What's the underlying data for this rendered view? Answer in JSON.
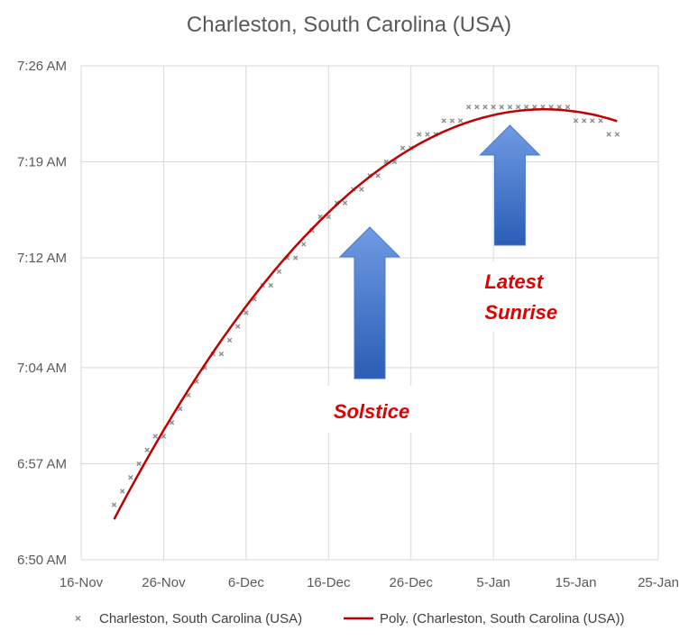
{
  "chart_data": {
    "type": "scatter",
    "title": "Charleston, South Carolina (USA)",
    "xlabel": "",
    "ylabel": "",
    "x_ticks": [
      "16-Nov",
      "26-Nov",
      "6-Dec",
      "16-Dec",
      "26-Dec",
      "5-Jan",
      "15-Jan",
      "25-Jan"
    ],
    "y_ticks": [
      "6:50 AM",
      "6:57 AM",
      "7:04 AM",
      "7:12 AM",
      "7:19 AM",
      "7:26 AM"
    ],
    "xlim": [
      "16-Nov",
      "25-Jan"
    ],
    "ylim": [
      "6:50 AM",
      "7:26 AM"
    ],
    "grid": "vertical and horizontal",
    "legend_position": "bottom",
    "series": [
      {
        "name": "Charleston, South Carolina (USA)",
        "marker": "x",
        "color": "#8c8c8c",
        "points": [
          [
            "20-Nov",
            "6:54 AM"
          ],
          [
            "21-Nov",
            "6:55 AM"
          ],
          [
            "22-Nov",
            "6:56 AM"
          ],
          [
            "23-Nov",
            "6:57 AM"
          ],
          [
            "24-Nov",
            "6:58 AM"
          ],
          [
            "25-Nov",
            "6:59 AM"
          ],
          [
            "26-Nov",
            "6:59 AM"
          ],
          [
            "27-Nov",
            "7:00 AM"
          ],
          [
            "28-Nov",
            "7:01 AM"
          ],
          [
            "29-Nov",
            "7:02 AM"
          ],
          [
            "30-Nov",
            "7:03 AM"
          ],
          [
            "1-Dec",
            "7:04 AM"
          ],
          [
            "2-Dec",
            "7:05 AM"
          ],
          [
            "3-Dec",
            "7:05 AM"
          ],
          [
            "4-Dec",
            "7:06 AM"
          ],
          [
            "5-Dec",
            "7:07 AM"
          ],
          [
            "6-Dec",
            "7:08 AM"
          ],
          [
            "7-Dec",
            "7:09 AM"
          ],
          [
            "8-Dec",
            "7:10 AM"
          ],
          [
            "9-Dec",
            "7:10 AM"
          ],
          [
            "10-Dec",
            "7:11 AM"
          ],
          [
            "11-Dec",
            "7:12 AM"
          ],
          [
            "12-Dec",
            "7:12 AM"
          ],
          [
            "13-Dec",
            "7:13 AM"
          ],
          [
            "14-Dec",
            "7:14 AM"
          ],
          [
            "15-Dec",
            "7:15 AM"
          ],
          [
            "16-Dec",
            "7:15 AM"
          ],
          [
            "17-Dec",
            "7:16 AM"
          ],
          [
            "18-Dec",
            "7:16 AM"
          ],
          [
            "19-Dec",
            "7:17 AM"
          ],
          [
            "20-Dec",
            "7:17 AM"
          ],
          [
            "21-Dec",
            "7:18 AM"
          ],
          [
            "22-Dec",
            "7:18 AM"
          ],
          [
            "23-Dec",
            "7:19 AM"
          ],
          [
            "24-Dec",
            "7:19 AM"
          ],
          [
            "25-Dec",
            "7:20 AM"
          ],
          [
            "26-Dec",
            "7:20 AM"
          ],
          [
            "27-Dec",
            "7:21 AM"
          ],
          [
            "28-Dec",
            "7:21 AM"
          ],
          [
            "29-Dec",
            "7:21 AM"
          ],
          [
            "30-Dec",
            "7:22 AM"
          ],
          [
            "31-Dec",
            "7:22 AM"
          ],
          [
            "1-Jan",
            "7:22 AM"
          ],
          [
            "2-Jan",
            "7:23 AM"
          ],
          [
            "3-Jan",
            "7:23 AM"
          ],
          [
            "4-Jan",
            "7:23 AM"
          ],
          [
            "5-Jan",
            "7:23 AM"
          ],
          [
            "6-Jan",
            "7:23 AM"
          ],
          [
            "7-Jan",
            "7:23 AM"
          ],
          [
            "8-Jan",
            "7:23 AM"
          ],
          [
            "9-Jan",
            "7:23 AM"
          ],
          [
            "10-Jan",
            "7:23 AM"
          ],
          [
            "11-Jan",
            "7:23 AM"
          ],
          [
            "12-Jan",
            "7:23 AM"
          ],
          [
            "13-Jan",
            "7:23 AM"
          ],
          [
            "14-Jan",
            "7:23 AM"
          ],
          [
            "15-Jan",
            "7:22 AM"
          ],
          [
            "16-Jan",
            "7:22 AM"
          ],
          [
            "17-Jan",
            "7:22 AM"
          ],
          [
            "18-Jan",
            "7:22 AM"
          ],
          [
            "19-Jan",
            "7:21 AM"
          ],
          [
            "20-Jan",
            "7:21 AM"
          ]
        ]
      },
      {
        "name": "Poly. (Charleston, South Carolina (USA))",
        "style": "trendline",
        "color": "#c00000"
      }
    ],
    "annotations": [
      {
        "text": "Solstice",
        "color": "#e00000",
        "arrow": "up",
        "at": "21-Dec"
      },
      {
        "text": "Latest Sunrise",
        "lines": [
          "Latest",
          "Sunrise"
        ],
        "color": "#e00000",
        "arrow": "up",
        "at": "7-Jan"
      }
    ]
  }
}
